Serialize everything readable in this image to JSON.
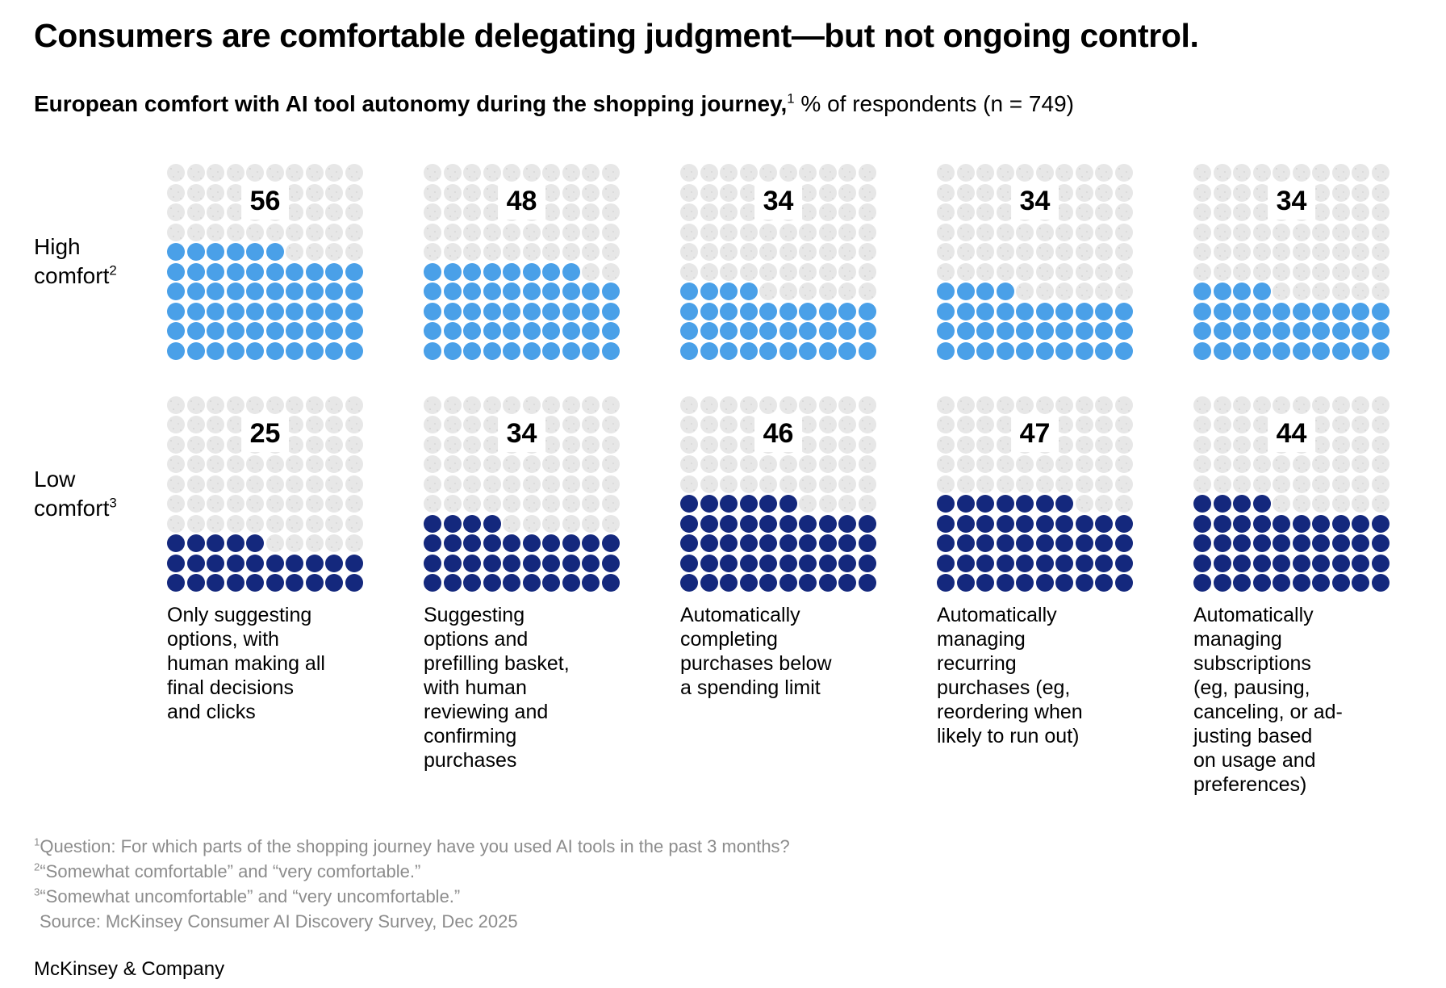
{
  "title": "Consumers are comfortable delegating judgment—but not ongoing control.",
  "subtitle": {
    "bold": "European comfort with AI tool autonomy during the shopping journey,",
    "sup": "1",
    "rest": " % of respondents (n = 749)"
  },
  "rows": [
    {
      "name": "High comfort",
      "label_lines": [
        "High",
        "comfort"
      ],
      "sup": "2",
      "color": "#4aa0e8",
      "values": [
        56,
        48,
        34,
        34,
        34
      ]
    },
    {
      "name": "Low comfort",
      "label_lines": [
        "Low",
        "comfort"
      ],
      "sup": "3",
      "color": "#14287d",
      "values": [
        25,
        34,
        46,
        47,
        44
      ]
    }
  ],
  "categories_display": [
    "Only suggesting\noptions, with\nhuman making all\nfinal decisions\nand clicks",
    "Suggesting\noptions and\nprefilling basket,\nwith human\nreviewing and\nconfirming\npurchases",
    "Automatically\ncompleting\npurchases below\na spending limit",
    "Automatically\nmanaging\nrecurring\npurchases (eg,\nreordering when\nlikely to run out)",
    "Automatically\nmanaging\nsubscriptions\n(eg, pausing,\ncanceling, or ad-\njusting based\non usage and\npreferences)"
  ],
  "footnotes": [
    {
      "sup": "1",
      "text": "Question: For which parts of the shopping journey have you used AI tools in the past 3 months?"
    },
    {
      "sup": "2",
      "text": "“Somewhat comfortable” and “very comfortable.”"
    },
    {
      "sup": "3",
      "text": "“Somewhat uncomfortable” and “very uncomfortable.”"
    }
  ],
  "source": "Source: McKinsey Consumer AI Discovery Survey, Dec 2025",
  "brand": "McKinsey & Company",
  "colors": {
    "high_comfort_dot": "#4aa0e8",
    "low_comfort_dot": "#14287d",
    "empty_dot": "#e7e7e7",
    "footnote_text": "#8c8c8c",
    "text": "#000000",
    "background": "#ffffff"
  },
  "chart_data": {
    "type": "waffle",
    "title": "Consumers are comfortable delegating judgment—but not ongoing control.",
    "subtitle": "European comfort with AI tool autonomy during the shopping journey, % of respondents (n = 749)",
    "n_respondents": 749,
    "unit": "% of respondents",
    "grid": {
      "rows": 10,
      "cols": 10,
      "dots_per_grid": 100,
      "fill_rule": "bottom-up, remainder row left-aligned"
    },
    "categories": [
      "Only suggesting options, with human making all final decisions and clicks",
      "Suggesting options and prefilling basket, with human reviewing and confirming purchases",
      "Automatically completing purchases below a spending limit",
      "Automatically managing recurring purchases (eg, reordering when likely to run out)",
      "Automatically managing subscriptions (eg, pausing, canceling, or adjusting based on usage and preferences)"
    ],
    "series": [
      {
        "name": "High comfort (somewhat comfortable and very comfortable)",
        "color": "#4aa0e8",
        "values": [
          56,
          48,
          34,
          34,
          34
        ]
      },
      {
        "name": "Low comfort (somewhat uncomfortable and very uncomfortable)",
        "color": "#14287d",
        "values": [
          25,
          34,
          46,
          47,
          44
        ]
      }
    ],
    "legend_position": "row labels at left",
    "source": "McKinsey Consumer AI Discovery Survey, Dec 2025"
  }
}
